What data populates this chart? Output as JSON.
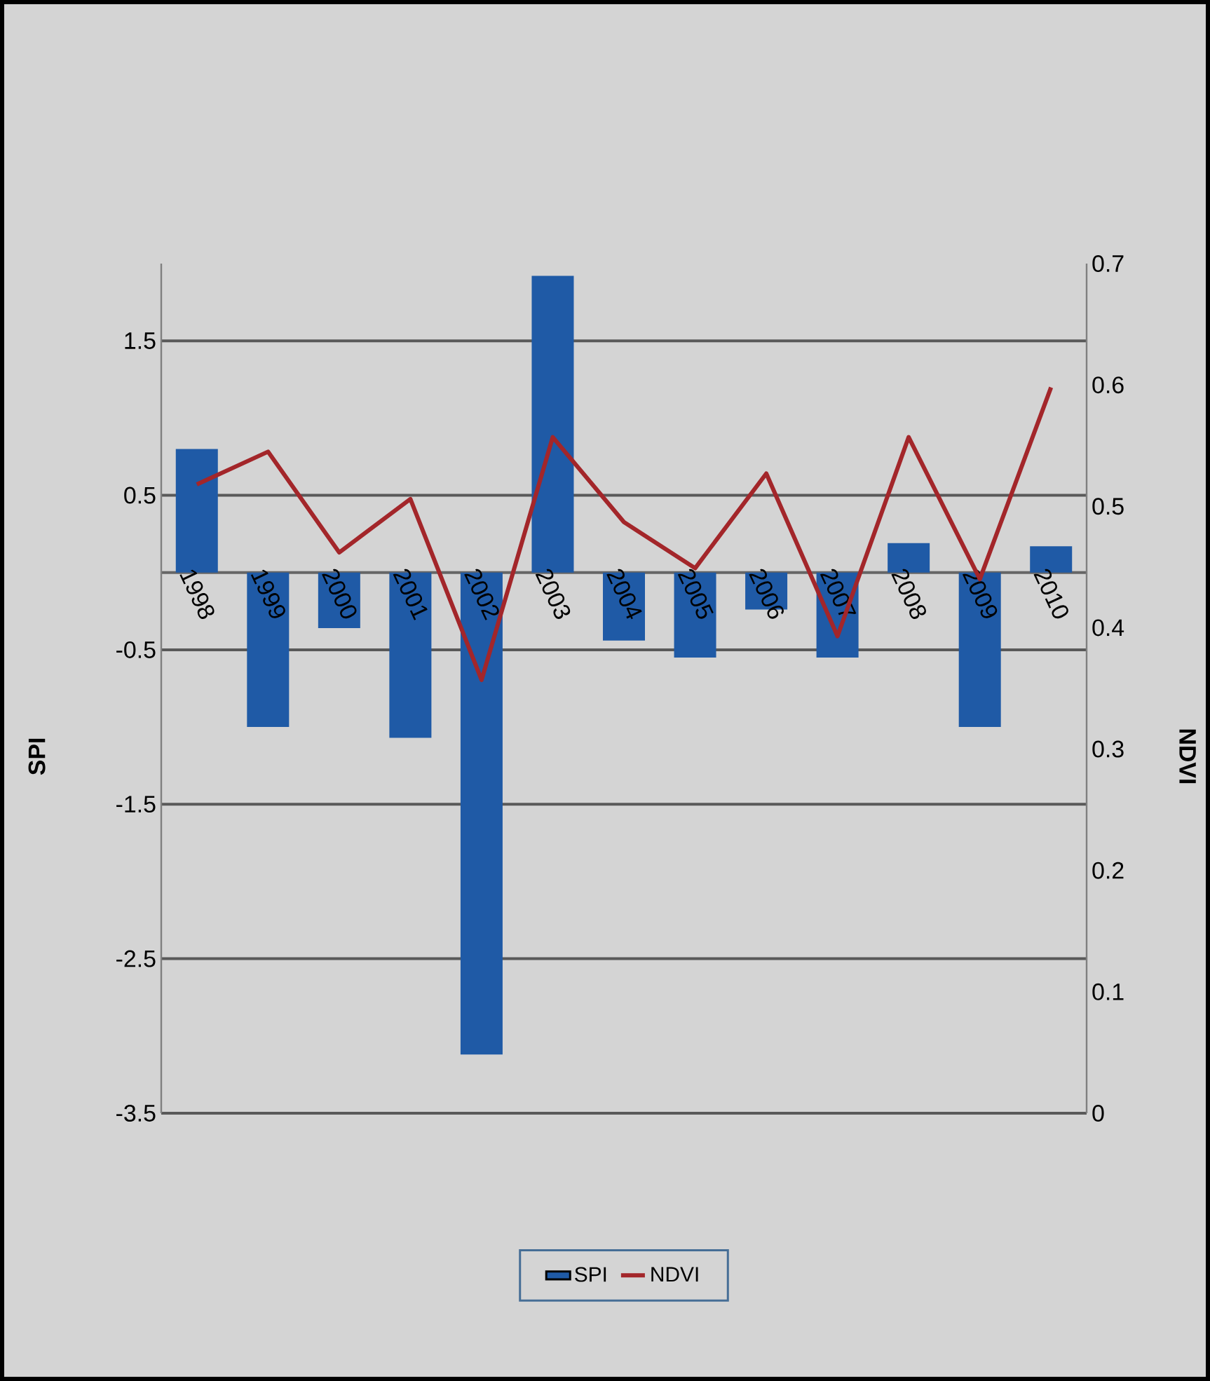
{
  "chart_data": {
    "type": "bar",
    "ylabel": "SPI",
    "y2label": "NDVI",
    "categories": [
      "1998",
      "1999",
      "2000",
      "2001",
      "2002",
      "2003",
      "2004",
      "2005",
      "2006",
      "2007",
      "2008",
      "2009",
      "2010"
    ],
    "series": [
      {
        "name": "SPI",
        "color": "#1f5aa6",
        "values": [
          0.8,
          -1.0,
          -0.36,
          -1.07,
          -3.12,
          1.92,
          -0.44,
          -0.55,
          -0.24,
          -0.55,
          0.19,
          -1.0,
          0.17
        ]
      },
      {
        "name": "NDVI",
        "type": "line",
        "axis": "y2",
        "color": "#a3262a",
        "values": [
          0.518,
          0.545,
          0.462,
          0.506,
          0.357,
          0.557,
          0.487,
          0.449,
          0.527,
          0.393,
          0.557,
          0.44,
          0.598
        ]
      }
    ],
    "ylim": [
      -3.5,
      2.0
    ],
    "yticks": [
      -3.5,
      -2.5,
      -1.5,
      -0.5,
      0.5,
      1.5
    ],
    "y2lim": [
      0,
      0.7
    ],
    "y2ticks": [
      0,
      0.1,
      0.2,
      0.3,
      0.4,
      0.5,
      0.6,
      0.7
    ],
    "grid": "y",
    "legend": "bottom",
    "marker": "none"
  }
}
